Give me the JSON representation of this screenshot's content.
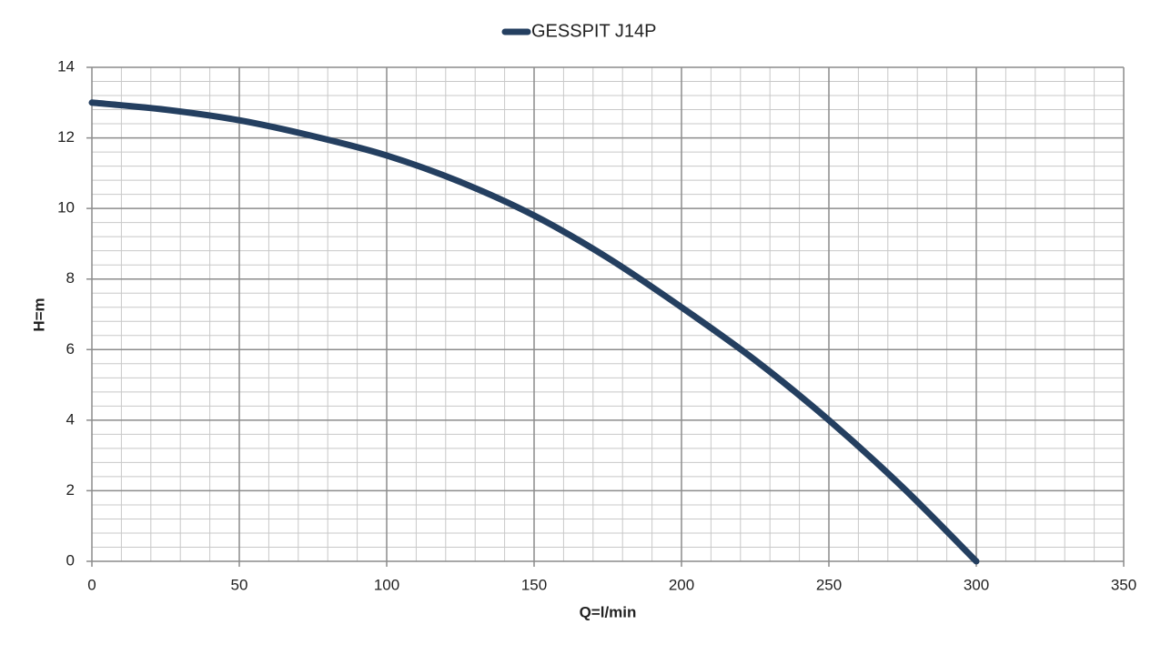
{
  "chart_data": {
    "type": "line",
    "legend": "top",
    "xlabel": "Q=l/min",
    "ylabel": "H=m",
    "x": [
      0,
      25,
      50,
      75,
      100,
      125,
      150,
      175,
      200,
      225,
      250,
      275,
      300
    ],
    "series": [
      {
        "name": "GESSPIT J14P",
        "color": "#243f60",
        "values": [
          13.0,
          12.8,
          12.5,
          12.05,
          11.5,
          10.75,
          9.8,
          8.6,
          7.2,
          5.7,
          4.0,
          2.1,
          0.0
        ]
      }
    ],
    "xlim": [
      0,
      350
    ],
    "xticks": [
      0,
      50,
      100,
      150,
      200,
      250,
      300,
      350
    ],
    "ylim": [
      0,
      14
    ],
    "yticks": [
      0,
      2,
      4,
      6,
      8,
      10,
      12,
      14
    ],
    "grid": true,
    "minor_grid": true
  }
}
